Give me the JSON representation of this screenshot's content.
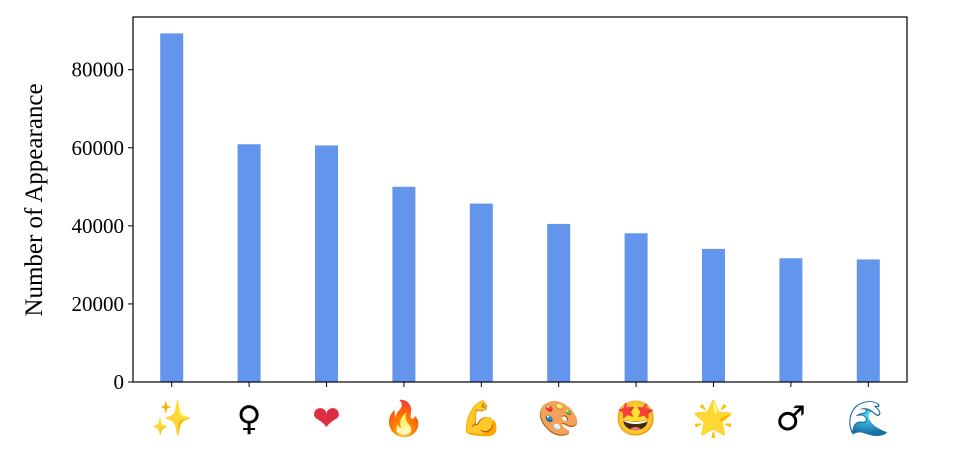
{
  "chart_data": {
    "type": "bar",
    "title": "",
    "xlabel": "",
    "ylabel": "Number of Appearance",
    "ylim": [
      0,
      93500
    ],
    "yticks": [
      0,
      20000,
      40000,
      60000,
      80000
    ],
    "grid": false,
    "legend": "none",
    "bar_color": "#6495ED",
    "categories": [
      "sparkles",
      "female-sign",
      "red-heart",
      "fire",
      "flexed-biceps",
      "artist-palette",
      "star-struck",
      "glowing-star",
      "male-sign",
      "water-wave"
    ],
    "category_glyphs": [
      "✨",
      "♀",
      "❤",
      "🔥",
      "💪",
      "🎨",
      "🤩",
      "🌟",
      "♂",
      "🌊"
    ],
    "category_colors": [
      "#F4B400",
      "#000000",
      "#DD2E44",
      "#F4801F",
      "#FFC83D",
      "#F5B7A1",
      "#F7B500",
      "#FFD23F",
      "#000000",
      "#3B9BD9"
    ],
    "values": [
      89300,
      60900,
      60600,
      50000,
      45700,
      40500,
      38100,
      34100,
      31700,
      31400
    ]
  }
}
